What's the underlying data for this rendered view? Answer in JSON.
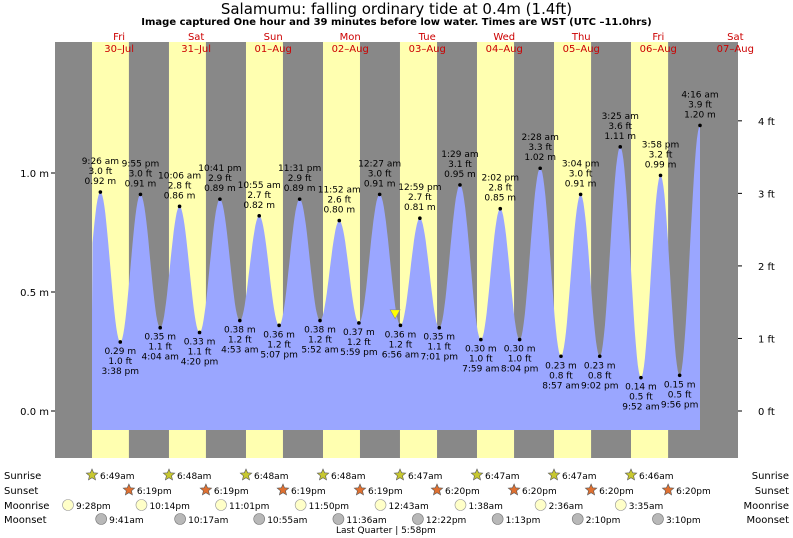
{
  "header": {
    "title": "Salamumu: falling  ordinary tide at 0.4m (1.4ft)",
    "subtitle": "Image captured One hour and 39 minutes before low water. Times are WST (UTC –11.0hrs)"
  },
  "colors": {
    "day": "#ffffb0",
    "night": "#888888",
    "tide_fill": "#9aa6ff",
    "day_label": "#cc0000",
    "current_marker": "#ffff00"
  },
  "chart_data": {
    "type": "area",
    "title": "Salamumu: falling  ordinary tide at 0.4m (1.4ft)",
    "y_left_ticks": [
      {
        "value": 0.0,
        "label": "0.0 m"
      },
      {
        "value": 0.5,
        "label": "0.5 m"
      },
      {
        "value": 1.0,
        "label": "1.0 m"
      }
    ],
    "y_right_ticks": [
      {
        "value": 0,
        "label": "0 ft"
      },
      {
        "value": 1,
        "label": "1 ft"
      },
      {
        "value": 2,
        "label": "2 ft"
      },
      {
        "value": 3,
        "label": "3 ft"
      },
      {
        "value": 4,
        "label": "4 ft"
      }
    ],
    "ylim_m": [
      -0.08,
      1.55
    ],
    "days": [
      {
        "name": "Fri",
        "date": "30–Jul",
        "hour": 24
      },
      {
        "name": "Sat",
        "date": "31–Jul",
        "hour": 48
      },
      {
        "name": "Sun",
        "date": "01–Aug",
        "hour": 72
      },
      {
        "name": "Mon",
        "date": "02–Aug",
        "hour": 96
      },
      {
        "name": "Tue",
        "date": "03–Aug",
        "hour": 120
      },
      {
        "name": "Wed",
        "date": "04–Aug",
        "hour": 144
      },
      {
        "name": "Thu",
        "date": "05–Aug",
        "hour": 168
      },
      {
        "name": "Fri",
        "date": "06–Aug",
        "hour": 192
      },
      {
        "name": "Sat",
        "date": "07–Aug",
        "hour": 216
      }
    ],
    "tides": [
      {
        "type": "high",
        "hour": 9.43,
        "time": "9:26 am",
        "ft": "3.0 ft",
        "m": "0.92 m",
        "value": 0.92
      },
      {
        "type": "low",
        "hour": 15.63,
        "time": "3:38 pm",
        "ft": "1.0 ft",
        "m": "0.29 m",
        "value": 0.29
      },
      {
        "type": "high",
        "hour": 21.92,
        "time": "9:55 pm",
        "ft": "3.0 ft",
        "m": "0.91 m",
        "value": 0.91
      },
      {
        "type": "low",
        "hour": 28.07,
        "time": "4:04 am",
        "ft": "1.1 ft",
        "m": "0.35 m",
        "value": 0.35
      },
      {
        "type": "high",
        "hour": 34.1,
        "time": "10:06 am",
        "ft": "2.8 ft",
        "m": "0.86 m",
        "value": 0.86
      },
      {
        "type": "low",
        "hour": 40.33,
        "time": "4:20 pm",
        "ft": "1.1 ft",
        "m": "0.33 m",
        "value": 0.33
      },
      {
        "type": "high",
        "hour": 46.68,
        "time": "10:41 pm",
        "ft": "2.9 ft",
        "m": "0.89 m",
        "value": 0.89
      },
      {
        "type": "low",
        "hour": 52.88,
        "time": "4:53 am",
        "ft": "1.2 ft",
        "m": "0.38 m",
        "value": 0.38
      },
      {
        "type": "high",
        "hour": 58.92,
        "time": "10:55 am",
        "ft": "2.7 ft",
        "m": "0.82 m",
        "value": 0.82
      },
      {
        "type": "low",
        "hour": 65.12,
        "time": "5:07 pm",
        "ft": "1.2 ft",
        "m": "0.36 m",
        "value": 0.36
      },
      {
        "type": "high",
        "hour": 71.52,
        "time": "11:31 pm",
        "ft": "2.9 ft",
        "m": "0.89 m",
        "value": 0.89
      },
      {
        "type": "low",
        "hour": 77.87,
        "time": "5:52 am",
        "ft": "1.2 ft",
        "m": "0.38 m",
        "value": 0.38
      },
      {
        "type": "high",
        "hour": 83.87,
        "time": "11:52 am",
        "ft": "2.6 ft",
        "m": "0.80 m",
        "value": 0.8
      },
      {
        "type": "low",
        "hour": 89.98,
        "time": "5:59 pm",
        "ft": "1.2 ft",
        "m": "0.37 m",
        "value": 0.37
      },
      {
        "type": "high",
        "hour": 96.45,
        "time": "12:27 am",
        "ft": "3.0 ft",
        "m": "0.91 m",
        "value": 0.91
      },
      {
        "type": "low",
        "hour": 102.93,
        "time": "6:56 am",
        "ft": "1.2 ft",
        "m": "0.36 m",
        "value": 0.36
      },
      {
        "type": "high",
        "hour": 108.98,
        "time": "12:59 pm",
        "ft": "2.7 ft",
        "m": "0.81 m",
        "value": 0.81
      },
      {
        "type": "low",
        "hour": 115.02,
        "time": "7:01 pm",
        "ft": "1.1 ft",
        "m": "0.35 m",
        "value": 0.35
      },
      {
        "type": "high",
        "hour": 121.48,
        "time": "1:29 am",
        "ft": "3.1 ft",
        "m": "0.95 m",
        "value": 0.95
      },
      {
        "type": "low",
        "hour": 127.98,
        "time": "7:59 am",
        "ft": "1.0 ft",
        "m": "0.30 m",
        "value": 0.3
      },
      {
        "type": "high",
        "hour": 134.03,
        "time": "2:02 pm",
        "ft": "2.8 ft",
        "m": "0.85 m",
        "value": 0.85
      },
      {
        "type": "low",
        "hour": 140.07,
        "time": "8:04 pm",
        "ft": "1.0 ft",
        "m": "0.30 m",
        "value": 0.3
      },
      {
        "type": "high",
        "hour": 146.47,
        "time": "2:28 am",
        "ft": "3.3 ft",
        "m": "1.02 m",
        "value": 1.02
      },
      {
        "type": "low",
        "hour": 152.95,
        "time": "8:57 am",
        "ft": "0.8 ft",
        "m": "0.23 m",
        "value": 0.23
      },
      {
        "type": "high",
        "hour": 159.07,
        "time": "3:04 pm",
        "ft": "3.0 ft",
        "m": "0.91 m",
        "value": 0.91
      },
      {
        "type": "low",
        "hour": 165.03,
        "time": "9:02 pm",
        "ft": "0.8 ft",
        "m": "0.23 m",
        "value": 0.23
      },
      {
        "type": "high",
        "hour": 171.42,
        "time": "3:25 am",
        "ft": "3.6 ft",
        "m": "1.11 m",
        "value": 1.11
      },
      {
        "type": "low",
        "hour": 177.87,
        "time": "9:52 am",
        "ft": "0.5 ft",
        "m": "0.14 m",
        "value": 0.14
      },
      {
        "type": "high",
        "hour": 183.97,
        "time": "3:58 pm",
        "ft": "3.2 ft",
        "m": "0.99 m",
        "value": 0.99
      },
      {
        "type": "low",
        "hour": 189.93,
        "time": "9:56 pm",
        "ft": "0.5 ft",
        "m": "0.15 m",
        "value": 0.15
      },
      {
        "type": "high",
        "hour": 196.27,
        "time": "4:16 am",
        "ft": "3.9 ft",
        "m": "1.20 m",
        "value": 1.2
      }
    ],
    "current": {
      "hour": 101.27,
      "value": 0.4
    }
  },
  "sun_moon": {
    "row_labels": [
      "Sunrise",
      "Sunset",
      "Moonrise",
      "Moonset"
    ],
    "sunrise": [
      {
        "hour": 6.82,
        "label": "6:49am"
      },
      {
        "hour": 30.8,
        "label": "6:48am"
      },
      {
        "hour": 54.8,
        "label": "6:48am"
      },
      {
        "hour": 78.8,
        "label": "6:48am"
      },
      {
        "hour": 102.78,
        "label": "6:47am"
      },
      {
        "hour": 126.78,
        "label": "6:47am"
      },
      {
        "hour": 150.78,
        "label": "6:47am"
      },
      {
        "hour": 174.77,
        "label": "6:46am"
      }
    ],
    "sunset": [
      {
        "hour": 18.32,
        "label": "6:19pm"
      },
      {
        "hour": 42.32,
        "label": "6:19pm"
      },
      {
        "hour": 66.32,
        "label": "6:19pm"
      },
      {
        "hour": 90.32,
        "label": "6:19pm"
      },
      {
        "hour": 114.33,
        "label": "6:20pm"
      },
      {
        "hour": 138.33,
        "label": "6:20pm"
      },
      {
        "hour": 162.33,
        "label": "6:20pm"
      },
      {
        "hour": 186.33,
        "label": "6:20pm"
      }
    ],
    "moonrise": [
      {
        "hour": -2.53,
        "label": "9:28pm"
      },
      {
        "hour": 22.23,
        "label": "10:14pm"
      },
      {
        "hour": 47.02,
        "label": "11:01pm"
      },
      {
        "hour": 71.83,
        "label": "11:50pm"
      },
      {
        "hour": 96.72,
        "label": "12:43am"
      },
      {
        "hour": 121.63,
        "label": "1:38am"
      },
      {
        "hour": 146.6,
        "label": "2:36am"
      },
      {
        "hour": 171.58,
        "label": "3:35am"
      }
    ],
    "moonset": [
      {
        "hour": 9.68,
        "label": "9:41am"
      },
      {
        "hour": 34.28,
        "label": "10:17am"
      },
      {
        "hour": 58.92,
        "label": "10:55am"
      },
      {
        "hour": 83.6,
        "label": "11:36am"
      },
      {
        "hour": 108.37,
        "label": "12:22pm"
      },
      {
        "hour": 133.22,
        "label": "1:13pm"
      },
      {
        "hour": 158.17,
        "label": "2:10pm"
      },
      {
        "hour": 183.17,
        "label": "3:10pm"
      }
    ],
    "moon_phase": {
      "hour": 113.97,
      "label": "Last Quarter | 5:58pm"
    }
  }
}
